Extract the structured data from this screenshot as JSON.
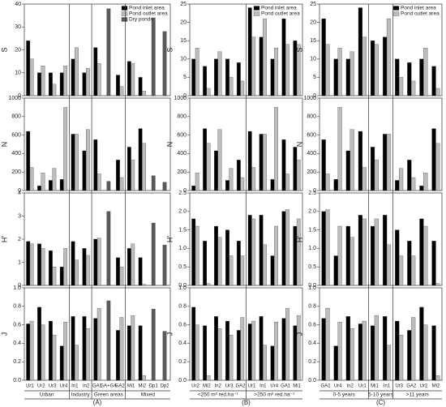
{
  "chart_data": [
    {
      "type": "bar",
      "label": "(A)",
      "groups": [
        {
          "label": "Urban",
          "categories": [
            "Ur1",
            "Ur2",
            "Ur3",
            "Ur4"
          ]
        },
        {
          "label": "Industry",
          "categories": [
            "In1",
            "In2"
          ]
        },
        {
          "label": "Green areas",
          "categories": [
            "GA1",
            "GA+GA",
            "GA2"
          ]
        },
        {
          "label": "Mixed",
          "categories": [
            "Mi1",
            "Mi2",
            "Dp1",
            "Dp2"
          ]
        }
      ],
      "series": [
        {
          "name": "Pond inlet area",
          "color": "#000000",
          "values": [
            [
              24,
              10,
              10,
              10,
              16,
              10,
              21,
              null,
              9,
              15,
              8,
              null,
              null
            ],
            [
              640,
              50,
              110,
              120,
              610,
              430,
              550,
              null,
              330,
              470,
              670,
              null,
              null
            ],
            [
              1.9,
              1.8,
              1.5,
              0.8,
              1.9,
              1.6,
              2.0,
              null,
              1.2,
              1.6,
              1.2,
              null,
              null
            ],
            [
              0.61,
              0.79,
              0.64,
              0.37,
              0.69,
              0.69,
              0.67,
              null,
              0.54,
              0.59,
              0.59,
              null,
              null
            ]
          ]
        },
        {
          "name": "Pond outlet area",
          "color": "#bdbdbd",
          "values": [
            [
              16,
              13,
              5,
              13,
              21,
              12,
              14,
              null,
              4,
              14,
              2,
              null,
              null
            ],
            [
              250,
              190,
              240,
              900,
              610,
              660,
              180,
              null,
              140,
              330,
              510,
              null,
              null
            ],
            [
              1.8,
              1.6,
              0.8,
              1.6,
              1.1,
              1.3,
              2.05,
              null,
              0.8,
              1.8,
              0.05,
              null,
              null
            ],
            [
              0.64,
              0.6,
              0.49,
              0.63,
              0.38,
              0.56,
              0.78,
              null,
              0.68,
              0.7,
              0.05,
              null,
              null
            ]
          ]
        },
        {
          "name": "Dry ponds",
          "color": "#5a5a5a",
          "values": [
            [
              null,
              null,
              null,
              null,
              null,
              null,
              null,
              38,
              null,
              null,
              null,
              34,
              28
            ],
            [
              null,
              null,
              null,
              null,
              null,
              null,
              null,
              100,
              null,
              null,
              null,
              160,
              90
            ],
            [
              null,
              null,
              null,
              null,
              null,
              null,
              null,
              3.2,
              null,
              null,
              null,
              2.7,
              1.75
            ],
            [
              null,
              null,
              null,
              null,
              null,
              null,
              null,
              0.86,
              null,
              null,
              null,
              0.77,
              0.53
            ]
          ]
        }
      ],
      "rows": [
        {
          "y_label": "S",
          "ylim": [
            0,
            40
          ],
          "yticks": [
            0,
            10,
            20,
            30,
            40
          ]
        },
        {
          "y_label": "N",
          "ylim": [
            0,
            1000
          ],
          "yticks": [
            0,
            200,
            400,
            600,
            800,
            1000
          ]
        },
        {
          "y_label": "H'",
          "ylim": [
            0,
            4
          ],
          "yticks": [
            0,
            1,
            2,
            3,
            4
          ]
        },
        {
          "y_label": "J",
          "ylim": [
            0,
            1
          ],
          "yticks": [
            {
              "value": 0,
              "label": "0.0"
            },
            0.2,
            0.4,
            0.6,
            0.8,
            {
              "value": 1,
              "label": "1.0"
            }
          ]
        }
      ]
    },
    {
      "type": "bar",
      "label": "(B)",
      "groups": [
        {
          "label": "<250 m² red.ha⁻¹",
          "categories": [
            "Ur2",
            "Mi2",
            "In2",
            "Ur3",
            "GA2"
          ]
        },
        {
          "label": ">250 m² red.ha⁻¹",
          "categories": [
            "Ur1",
            "In1",
            "Ur4",
            "GA1",
            "Mi1"
          ]
        }
      ],
      "series": [
        {
          "name": "Pond inlet area",
          "color": "#000000",
          "values": [
            [
              10,
              8,
              10,
              10,
              9,
              24,
              16,
              10,
              21,
              15
            ],
            [
              50,
              670,
              430,
              110,
              330,
              640,
              610,
              120,
              550,
              470
            ],
            [
              1.8,
              1.2,
              1.6,
              1.5,
              1.2,
              1.9,
              1.9,
              0.8,
              2.0,
              1.6
            ],
            [
              0.79,
              0.59,
              0.69,
              0.64,
              0.54,
              0.61,
              0.69,
              0.37,
              0.67,
              0.59
            ]
          ]
        },
        {
          "name": "Pond outlet area",
          "color": "#bdbdbd",
          "values": [
            [
              13,
              2,
              12,
              5,
              4,
              16,
              21,
              13,
              14,
              14
            ],
            [
              190,
              510,
              660,
              240,
              140,
              250,
              610,
              900,
              180,
              330
            ],
            [
              1.6,
              0.05,
              1.3,
              0.8,
              0.8,
              1.8,
              1.1,
              1.6,
              2.05,
              1.8
            ],
            [
              0.6,
              0.05,
              0.56,
              0.49,
              0.68,
              0.64,
              0.38,
              0.63,
              0.78,
              0.7
            ]
          ]
        }
      ],
      "rows": [
        {
          "y_label": "S",
          "ylim": [
            0,
            25
          ],
          "yticks": [
            0,
            5,
            10,
            15,
            20,
            25
          ]
        },
        {
          "y_label": "N",
          "ylim": [
            0,
            1000
          ],
          "yticks": [
            0,
            200,
            400,
            600,
            800,
            1000
          ]
        },
        {
          "y_label": "H'",
          "ylim": [
            0,
            2.5
          ],
          "yticks": [
            {
              "value": 0,
              "label": "0.0"
            },
            0.5,
            {
              "value": 1,
              "label": "1.0"
            },
            1.5,
            {
              "value": 2,
              "label": "2.0"
            },
            2.5
          ]
        },
        {
          "y_label": "J",
          "ylim": [
            0,
            1
          ],
          "yticks": [
            {
              "value": 0,
              "label": "0.0"
            },
            0.2,
            0.4,
            0.6,
            0.8,
            {
              "value": 1,
              "label": "1.0"
            }
          ]
        }
      ]
    },
    {
      "type": "bar",
      "label": "(C)",
      "groups": [
        {
          "label": "0-5 years",
          "categories": [
            "GA1",
            "Ur4",
            "In2",
            "Ur1"
          ]
        },
        {
          "label": "5-10 years",
          "categories": [
            "Mi1",
            "In1"
          ]
        },
        {
          "label": ">11 years",
          "categories": [
            "Ur3",
            "GA2",
            "Ur2",
            "Mi2"
          ]
        }
      ],
      "series": [
        {
          "name": "Pond inlet area",
          "color": "#000000",
          "values": [
            [
              21,
              10,
              10,
              24,
              15,
              16,
              10,
              9,
              10,
              8
            ],
            [
              550,
              120,
              430,
              640,
              470,
              610,
              110,
              330,
              50,
              670
            ],
            [
              2.0,
              0.8,
              1.6,
              1.9,
              1.6,
              1.9,
              1.5,
              1.2,
              1.8,
              1.2
            ],
            [
              0.67,
              0.37,
              0.69,
              0.61,
              0.59,
              0.69,
              0.64,
              0.54,
              0.79,
              0.59
            ]
          ]
        },
        {
          "name": "Pond outlet area",
          "color": "#bdbdbd",
          "values": [
            [
              14,
              13,
              12,
              16,
              14,
              21,
              5,
              4,
              13,
              2
            ],
            [
              180,
              900,
              660,
              250,
              330,
              610,
              240,
              140,
              190,
              510
            ],
            [
              2.05,
              1.6,
              1.3,
              1.8,
              1.8,
              1.1,
              0.8,
              0.8,
              1.6,
              0.05
            ],
            [
              0.78,
              0.63,
              0.56,
              0.64,
              0.7,
              0.38,
              0.49,
              0.68,
              0.6,
              0.05
            ]
          ]
        }
      ],
      "rows": [
        {
          "y_label": "S",
          "ylim": [
            0,
            25
          ],
          "yticks": [
            0,
            5,
            10,
            15,
            20,
            25
          ]
        },
        {
          "y_label": "N",
          "ylim": [
            0,
            1000
          ],
          "yticks": [
            0,
            200,
            400,
            600,
            800,
            1000
          ]
        },
        {
          "y_label": "H'",
          "ylim": [
            0,
            2.5
          ],
          "yticks": [
            {
              "value": 0,
              "label": "0.0"
            },
            0.5,
            {
              "value": 1,
              "label": "1.0"
            },
            1.5,
            {
              "value": 2,
              "label": "2.0"
            },
            2.5
          ]
        },
        {
          "y_label": "J",
          "ylim": [
            0,
            1
          ],
          "yticks": [
            {
              "value": 0,
              "label": "0.0"
            },
            0.2,
            0.4,
            0.6,
            0.8,
            {
              "value": 1,
              "label": "1.0"
            }
          ]
        }
      ]
    }
  ]
}
